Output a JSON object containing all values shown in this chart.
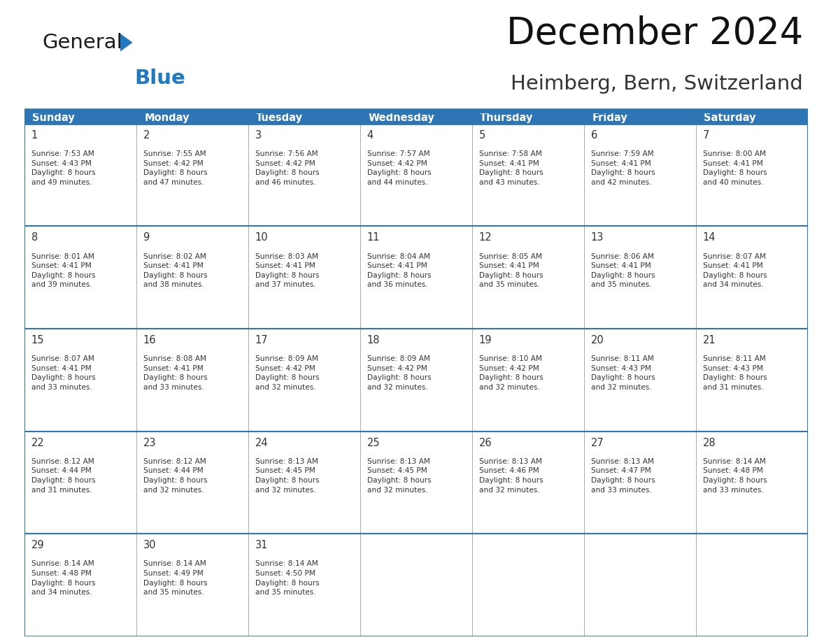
{
  "title": "December 2024",
  "subtitle": "Heimberg, Bern, Switzerland",
  "header_color": "#2E75B6",
  "header_text_color": "#FFFFFF",
  "border_color": "#2E75B6",
  "cell_line_color": "#AAAAAA",
  "text_color": "#333333",
  "days_of_week": [
    "Sunday",
    "Monday",
    "Tuesday",
    "Wednesday",
    "Thursday",
    "Friday",
    "Saturday"
  ],
  "day_data": [
    {
      "day": 1,
      "col": 0,
      "row": 0,
      "sunrise": "7:53 AM",
      "sunset": "4:43 PM",
      "dl_hours": "8",
      "dl_mins": "49"
    },
    {
      "day": 2,
      "col": 1,
      "row": 0,
      "sunrise": "7:55 AM",
      "sunset": "4:42 PM",
      "dl_hours": "8",
      "dl_mins": "47"
    },
    {
      "day": 3,
      "col": 2,
      "row": 0,
      "sunrise": "7:56 AM",
      "sunset": "4:42 PM",
      "dl_hours": "8",
      "dl_mins": "46"
    },
    {
      "day": 4,
      "col": 3,
      "row": 0,
      "sunrise": "7:57 AM",
      "sunset": "4:42 PM",
      "dl_hours": "8",
      "dl_mins": "44"
    },
    {
      "day": 5,
      "col": 4,
      "row": 0,
      "sunrise": "7:58 AM",
      "sunset": "4:41 PM",
      "dl_hours": "8",
      "dl_mins": "43"
    },
    {
      "day": 6,
      "col": 5,
      "row": 0,
      "sunrise": "7:59 AM",
      "sunset": "4:41 PM",
      "dl_hours": "8",
      "dl_mins": "42"
    },
    {
      "day": 7,
      "col": 6,
      "row": 0,
      "sunrise": "8:00 AM",
      "sunset": "4:41 PM",
      "dl_hours": "8",
      "dl_mins": "40"
    },
    {
      "day": 8,
      "col": 0,
      "row": 1,
      "sunrise": "8:01 AM",
      "sunset": "4:41 PM",
      "dl_hours": "8",
      "dl_mins": "39"
    },
    {
      "day": 9,
      "col": 1,
      "row": 1,
      "sunrise": "8:02 AM",
      "sunset": "4:41 PM",
      "dl_hours": "8",
      "dl_mins": "38"
    },
    {
      "day": 10,
      "col": 2,
      "row": 1,
      "sunrise": "8:03 AM",
      "sunset": "4:41 PM",
      "dl_hours": "8",
      "dl_mins": "37"
    },
    {
      "day": 11,
      "col": 3,
      "row": 1,
      "sunrise": "8:04 AM",
      "sunset": "4:41 PM",
      "dl_hours": "8",
      "dl_mins": "36"
    },
    {
      "day": 12,
      "col": 4,
      "row": 1,
      "sunrise": "8:05 AM",
      "sunset": "4:41 PM",
      "dl_hours": "8",
      "dl_mins": "35"
    },
    {
      "day": 13,
      "col": 5,
      "row": 1,
      "sunrise": "8:06 AM",
      "sunset": "4:41 PM",
      "dl_hours": "8",
      "dl_mins": "35"
    },
    {
      "day": 14,
      "col": 6,
      "row": 1,
      "sunrise": "8:07 AM",
      "sunset": "4:41 PM",
      "dl_hours": "8",
      "dl_mins": "34"
    },
    {
      "day": 15,
      "col": 0,
      "row": 2,
      "sunrise": "8:07 AM",
      "sunset": "4:41 PM",
      "dl_hours": "8",
      "dl_mins": "33"
    },
    {
      "day": 16,
      "col": 1,
      "row": 2,
      "sunrise": "8:08 AM",
      "sunset": "4:41 PM",
      "dl_hours": "8",
      "dl_mins": "33"
    },
    {
      "day": 17,
      "col": 2,
      "row": 2,
      "sunrise": "8:09 AM",
      "sunset": "4:42 PM",
      "dl_hours": "8",
      "dl_mins": "32"
    },
    {
      "day": 18,
      "col": 3,
      "row": 2,
      "sunrise": "8:09 AM",
      "sunset": "4:42 PM",
      "dl_hours": "8",
      "dl_mins": "32"
    },
    {
      "day": 19,
      "col": 4,
      "row": 2,
      "sunrise": "8:10 AM",
      "sunset": "4:42 PM",
      "dl_hours": "8",
      "dl_mins": "32"
    },
    {
      "day": 20,
      "col": 5,
      "row": 2,
      "sunrise": "8:11 AM",
      "sunset": "4:43 PM",
      "dl_hours": "8",
      "dl_mins": "32"
    },
    {
      "day": 21,
      "col": 6,
      "row": 2,
      "sunrise": "8:11 AM",
      "sunset": "4:43 PM",
      "dl_hours": "8",
      "dl_mins": "31"
    },
    {
      "day": 22,
      "col": 0,
      "row": 3,
      "sunrise": "8:12 AM",
      "sunset": "4:44 PM",
      "dl_hours": "8",
      "dl_mins": "31"
    },
    {
      "day": 23,
      "col": 1,
      "row": 3,
      "sunrise": "8:12 AM",
      "sunset": "4:44 PM",
      "dl_hours": "8",
      "dl_mins": "32"
    },
    {
      "day": 24,
      "col": 2,
      "row": 3,
      "sunrise": "8:13 AM",
      "sunset": "4:45 PM",
      "dl_hours": "8",
      "dl_mins": "32"
    },
    {
      "day": 25,
      "col": 3,
      "row": 3,
      "sunrise": "8:13 AM",
      "sunset": "4:45 PM",
      "dl_hours": "8",
      "dl_mins": "32"
    },
    {
      "day": 26,
      "col": 4,
      "row": 3,
      "sunrise": "8:13 AM",
      "sunset": "4:46 PM",
      "dl_hours": "8",
      "dl_mins": "32"
    },
    {
      "day": 27,
      "col": 5,
      "row": 3,
      "sunrise": "8:13 AM",
      "sunset": "4:47 PM",
      "dl_hours": "8",
      "dl_mins": "33"
    },
    {
      "day": 28,
      "col": 6,
      "row": 3,
      "sunrise": "8:14 AM",
      "sunset": "4:48 PM",
      "dl_hours": "8",
      "dl_mins": "33"
    },
    {
      "day": 29,
      "col": 0,
      "row": 4,
      "sunrise": "8:14 AM",
      "sunset": "4:48 PM",
      "dl_hours": "8",
      "dl_mins": "34"
    },
    {
      "day": 30,
      "col": 1,
      "row": 4,
      "sunrise": "8:14 AM",
      "sunset": "4:49 PM",
      "dl_hours": "8",
      "dl_mins": "35"
    },
    {
      "day": 31,
      "col": 2,
      "row": 4,
      "sunrise": "8:14 AM",
      "sunset": "4:50 PM",
      "dl_hours": "8",
      "dl_mins": "35"
    }
  ],
  "logo_color_general": "#1a1a1a",
  "logo_color_blue": "#2179C0",
  "logo_triangle_color": "#2179C0",
  "figsize": [
    11.88,
    9.18
  ],
  "dpi": 100
}
